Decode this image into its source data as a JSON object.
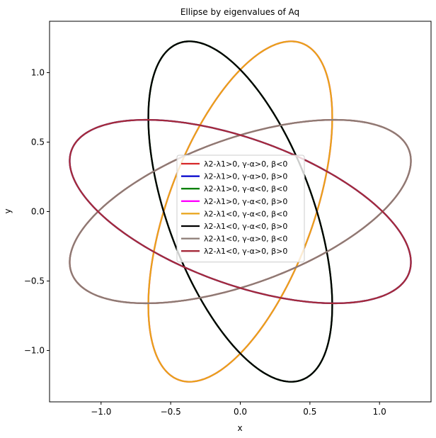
{
  "chart_data": {
    "type": "line",
    "title": "Ellipse by eigenvalues of Aq",
    "xlabel": "x",
    "ylabel": "y",
    "xlim": [
      -1.37,
      1.37
    ],
    "ylim": [
      -1.37,
      1.37
    ],
    "xticks": [
      -1.0,
      -0.5,
      0.0,
      0.5,
      1.0
    ],
    "xtick_labels": [
      "−1.0",
      "−0.5",
      "0.0",
      "0.5",
      "1.0"
    ],
    "yticks": [
      -1.0,
      -0.5,
      0.0,
      0.5,
      1.0
    ],
    "ytick_labels": [
      "−1.0",
      "−0.5",
      "0.0",
      "0.5",
      "1.0"
    ],
    "grid": false,
    "legend_position": "center",
    "series": [
      {
        "name": "λ2-λ1>0, γ-α>0, β<0",
        "color": "#d62728",
        "semi_major": 1.29,
        "semi_minor": 0.523,
        "angle_deg": 20.0
      },
      {
        "name": "λ2-λ1>0, γ-α>0, β>0",
        "color": "#0000cc",
        "semi_major": 1.29,
        "semi_minor": 0.523,
        "angle_deg": 160.0
      },
      {
        "name": "λ2-λ1>0, γ-α<0, β<0",
        "color": "#008000",
        "semi_major": 1.29,
        "semi_minor": 0.523,
        "angle_deg": 110.0
      },
      {
        "name": "λ2-λ1>0, γ-α<0, β>0",
        "color": "#ff00ff",
        "semi_major": 1.29,
        "semi_minor": 0.523,
        "angle_deg": 70.0
      },
      {
        "name": "λ2-λ1<0, γ-α<0, β<0",
        "color": "#e8a317",
        "semi_major": 1.29,
        "semi_minor": 0.523,
        "angle_deg": 70.0
      },
      {
        "name": "λ2-λ1<0, γ-α<0, β>0",
        "color": "#000000",
        "semi_major": 1.29,
        "semi_minor": 0.523,
        "angle_deg": 110.0
      },
      {
        "name": "λ2-λ1<0, γ-α>0, β<0",
        "color": "#8c7b75",
        "semi_major": 1.29,
        "semi_minor": 0.523,
        "angle_deg": 20.0
      },
      {
        "name": "λ2-λ1<0, γ-α>0, β>0",
        "color": "#a52a3a",
        "semi_major": 1.29,
        "semi_minor": 0.523,
        "angle_deg": 160.0
      }
    ]
  }
}
